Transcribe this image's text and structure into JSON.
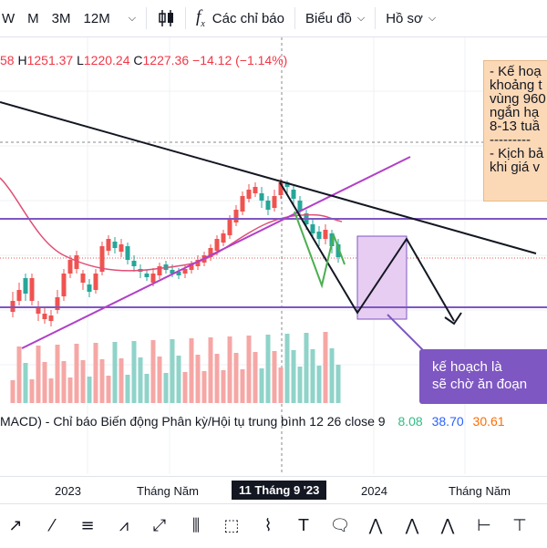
{
  "topbar": {
    "timeframes": [
      "W",
      "M",
      "3M",
      "12M"
    ],
    "indicators_label": "Các chỉ báo",
    "chart_type_label": "Biểu đồ",
    "profile_label": "Hồ sơ"
  },
  "ohlc": {
    "open_fragment": "58",
    "high_label": "H",
    "high": "1251.37",
    "low_label": "L",
    "low": "1220.24",
    "close_label": "C",
    "close": "1227.36",
    "change": "−14.12 (−1.14%)"
  },
  "note": {
    "lines": [
      "- Kế hoạ",
      "khoảng t",
      "vùng 960",
      "ngắn hạ",
      "8-13 tuầ",
      "---------",
      "- Kịch bả",
      "khi giá v"
    ]
  },
  "callout": {
    "line1": "kế hoạch là",
    "line2": "sẽ chờ ăn đoạn"
  },
  "macd": {
    "label": "MACD) - Chỉ báo Biến động Phân kỳ/Hội tụ trung bình 12 26 close 9",
    "v1": "8.08",
    "v2": "38.70",
    "v3": "30.61"
  },
  "time_axis": {
    "labels": [
      "2023",
      "Tháng Năm",
      "2024",
      "Tháng Năm"
    ],
    "highlight": "11 Tháng 9 '23"
  },
  "colors": {
    "up": "#26a69a",
    "down": "#ef5350",
    "purple_line": "#7e57c2",
    "magenta_line": "#b040c8",
    "trend_line": "#131722",
    "ma_line": "#e04e75",
    "zone_fill": "#e7cdf2",
    "note_bg": "#fcd9b6",
    "callout_bg": "#7e57c2"
  },
  "tools": [
    "cursor-tool",
    "trendline-tool",
    "fib-tool",
    "pitchfork-tool",
    "brush-tool",
    "channel-tool",
    "rectangle-tool",
    "path-tool",
    "text-tool",
    "note-tool",
    "elliott-tool",
    "abcd-tool",
    "xabcd-tool",
    "measure-tool",
    "zoom-tool"
  ]
}
